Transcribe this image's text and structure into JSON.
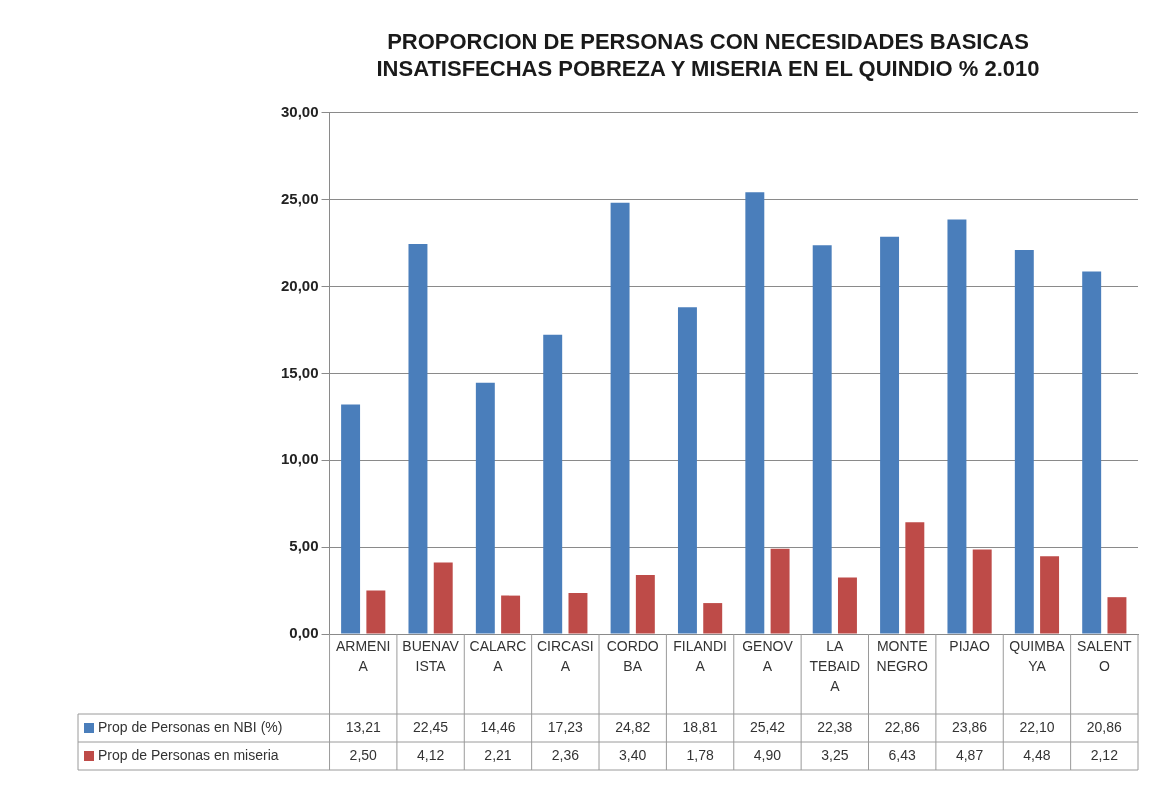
{
  "chart_data": {
    "type": "bar",
    "title": "PROPORCION DE PERSONAS CON NECESIDADES BASICAS INSATISFECHAS POBREZA Y MISERIA EN EL QUINDIO % 2.010",
    "categories": [
      "ARMENIA",
      "BUENAVISTA",
      "CALARCA",
      "CIRCASIA",
      "CORDOBA",
      "FILANDIA",
      "GENOVA",
      "LA TEBAIDA",
      "MONTENEGRO",
      "PIJAO",
      "QUIMBAYA",
      "SALENTO"
    ],
    "series": [
      {
        "name": "Prop de Personas en NBI (%)",
        "color": "#4a7ebb",
        "values": [
          13.21,
          22.45,
          14.46,
          17.23,
          24.82,
          18.81,
          25.42,
          22.38,
          22.86,
          23.86,
          22.1,
          20.86
        ],
        "value_labels": [
          "13,21",
          "22,45",
          "14,46",
          "17,23",
          "24,82",
          "18,81",
          "25,42",
          "22,38",
          "22,86",
          "23,86",
          "22,10",
          "20,86"
        ]
      },
      {
        "name": "Prop de Personas en miseria",
        "color": "#be4b48",
        "values": [
          2.5,
          4.12,
          2.21,
          2.36,
          3.4,
          1.78,
          4.9,
          3.25,
          6.43,
          4.87,
          4.48,
          2.12
        ],
        "value_labels": [
          "2,50",
          "4,12",
          "2,21",
          "2,36",
          "3,40",
          "1,78",
          "4,90",
          "3,25",
          "6,43",
          "4,87",
          "4,48",
          "2,12"
        ]
      }
    ],
    "ylim": [
      0,
      30
    ],
    "yticks": [
      {
        "value": 0,
        "label": "0,00"
      },
      {
        "value": 5,
        "label": "5,00"
      },
      {
        "value": 10,
        "label": "10,00"
      },
      {
        "value": 15,
        "label": "15,00"
      },
      {
        "value": 20,
        "label": "20,00"
      },
      {
        "value": 25,
        "label": "25,00"
      },
      {
        "value": 30,
        "label": "30,00"
      }
    ],
    "grid": "y",
    "legend": "bottom"
  }
}
